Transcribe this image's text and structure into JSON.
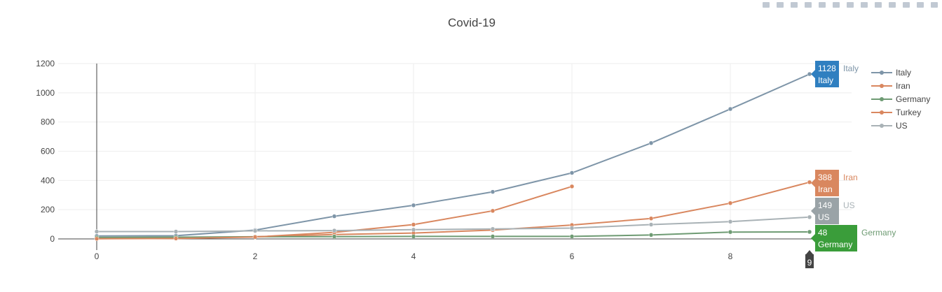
{
  "modebar": {
    "icons": [
      "camera-icon",
      "zoom-icon",
      "pan-icon",
      "box-select-icon",
      "lasso-icon",
      "zoom-in-icon",
      "zoom-out-icon",
      "autoscale-icon",
      "reset-axes-icon",
      "spike-lines-icon",
      "hover-closest-icon",
      "hover-compare-icon",
      "plotly-logo-icon"
    ]
  },
  "chart_data": {
    "type": "line",
    "title": "Covid-19",
    "xlabel": "",
    "ylabel": "",
    "xlim": [
      0,
      9
    ],
    "ylim": [
      0,
      1200
    ],
    "xticks": [
      0,
      2,
      4,
      6,
      8
    ],
    "yticks": [
      0,
      200,
      400,
      600,
      800,
      1000,
      1200
    ],
    "grid": true,
    "legend": "right",
    "series": [
      {
        "name": "Italy",
        "color": "#7e95a8",
        "x": [
          0,
          1,
          2,
          3,
          4,
          5,
          6,
          7,
          8,
          9
        ],
        "values": [
          20,
          22,
          60,
          155,
          230,
          322,
          452,
          656,
          889,
          1128
        ]
      },
      {
        "name": "Iran",
        "color": "#d9875f",
        "x": [
          0,
          1,
          2,
          3,
          4,
          5,
          6,
          7,
          8,
          9
        ],
        "values": [
          2,
          5,
          15,
          30,
          40,
          60,
          95,
          140,
          245,
          388
        ]
      },
      {
        "name": "Germany",
        "color": "#6e9b73",
        "x": [
          0,
          1,
          2,
          3,
          4,
          5,
          6,
          7,
          8,
          9
        ],
        "values": [
          10,
          12,
          15,
          16,
          17,
          17,
          17,
          27,
          47,
          48
        ]
      },
      {
        "name": "Turkey",
        "color": "#d9875f",
        "x": [
          0,
          1,
          2,
          3,
          4,
          5,
          6
        ],
        "values": [
          1,
          3,
          13,
          45,
          98,
          192,
          359
        ]
      },
      {
        "name": "US",
        "color": "#a9b2b6",
        "x": [
          0,
          1,
          2,
          3,
          4,
          5,
          6,
          7,
          8,
          9
        ],
        "values": [
          50,
          50,
          55,
          57,
          63,
          68,
          74,
          98,
          118,
          149
        ]
      }
    ],
    "hover": {
      "x_label": "9",
      "labels": [
        {
          "series": "Italy",
          "value": "1128",
          "name": "Italy",
          "color": "#2f7fc0"
        },
        {
          "series": "Iran",
          "value": "388",
          "name": "Iran",
          "color": "#d9875f"
        },
        {
          "series": "US",
          "value": "149",
          "name": "US",
          "color": "#9aa3a7"
        },
        {
          "series": "Germany",
          "value": "48",
          "name": "Germany",
          "color": "#3a9d3a"
        }
      ]
    }
  }
}
